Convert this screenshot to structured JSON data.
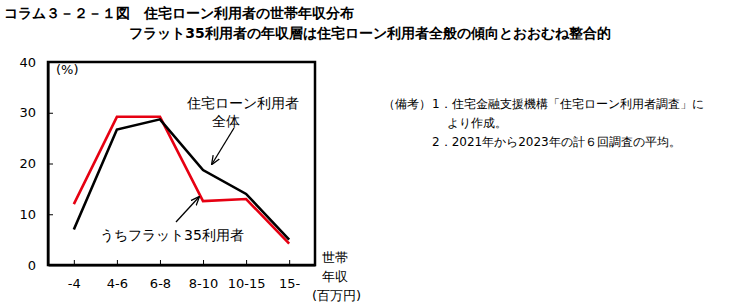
{
  "chart_data": {
    "type": "line",
    "title": "コラム３－２－１図　住宅ローン利用者の世帯年収分布",
    "subtitle": "フラット35利用者の年収層は住宅ローン利用者全般の傾向とおおむね整合的",
    "y_label": "(%)",
    "x_label": "世帯年収(百万円)",
    "categories": [
      "-4",
      "4-6",
      "6-8",
      "8-10",
      "10-15",
      "15-"
    ],
    "series": [
      {
        "name": "住宅ローン利用者全体",
        "color": "#000000",
        "values": [
          7,
          26.7,
          28.7,
          18.7,
          14,
          5
        ]
      },
      {
        "name": "うちフラット35利用者",
        "color": "#e60012",
        "values": [
          12,
          29.2,
          29.2,
          12.6,
          13,
          4.2
        ]
      }
    ],
    "ylim": [
      0,
      40
    ],
    "yticks": [
      0,
      10,
      20,
      30,
      40
    ],
    "notes": [
      "（備考）",
      "1．住宅金融支援機構「住宅ローン利用者調査」により作成。",
      "2．2021年から2023年の計６回調査の平均。"
    ]
  }
}
